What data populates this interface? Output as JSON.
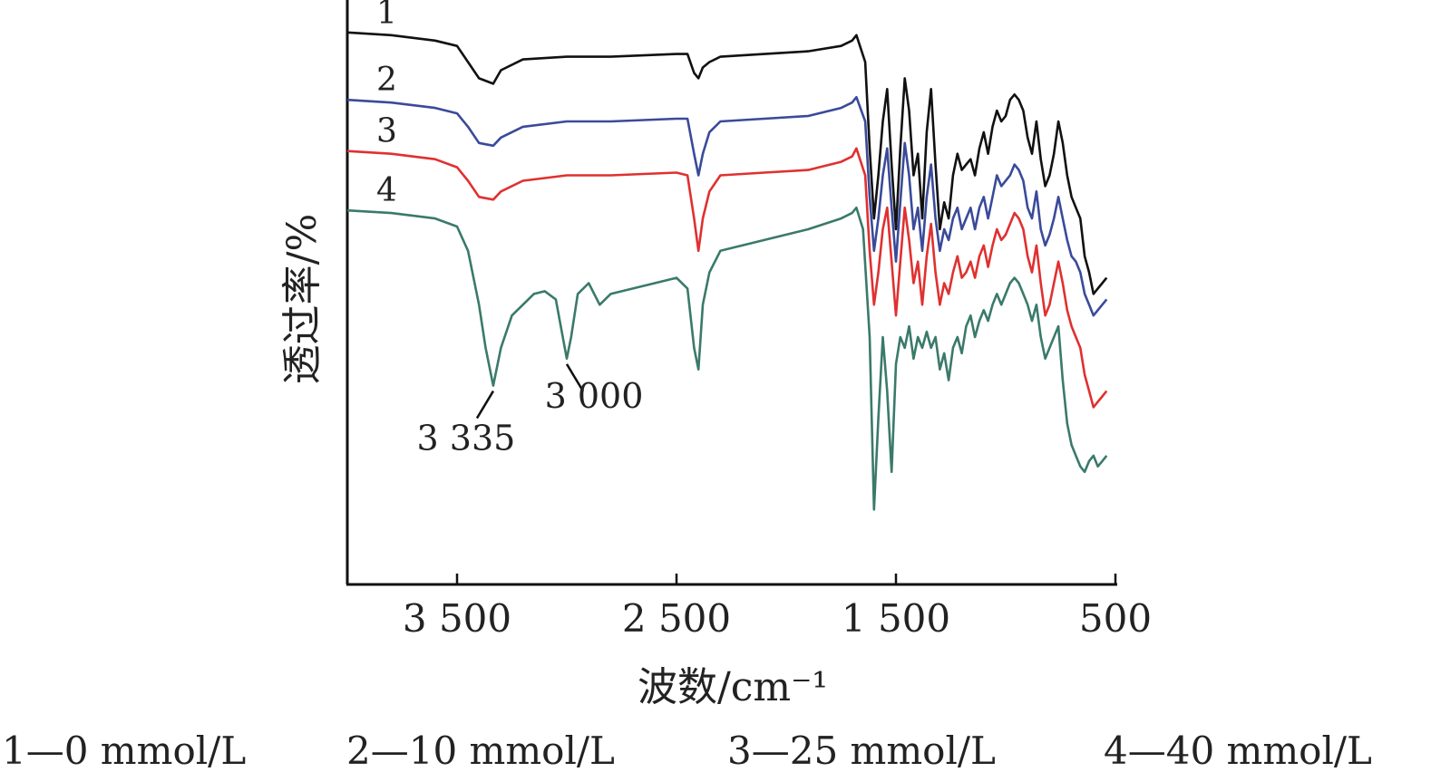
{
  "chart_data": {
    "type": "line",
    "xlabel": "波数/cm⁻¹",
    "ylabel": "透过率/%",
    "xlim": [
      4000,
      500
    ],
    "x_reversed": true,
    "xticks": [
      3500,
      2500,
      1500,
      500
    ],
    "xtick_labels": [
      "3 500",
      "2 500",
      "1 500",
      "500"
    ],
    "grid": false,
    "series": [
      {
        "name": "1",
        "legend": "1—0 mmol/L",
        "color": "#111111",
        "x": [
          4000,
          3800,
          3600,
          3500,
          3450,
          3400,
          3335,
          3300,
          3200,
          3000,
          2800,
          2500,
          2450,
          2420,
          2400,
          2380,
          2350,
          2300,
          2100,
          1900,
          1750,
          1700,
          1680,
          1640,
          1620,
          1600,
          1580,
          1560,
          1540,
          1520,
          1500,
          1480,
          1460,
          1440,
          1420,
          1400,
          1380,
          1360,
          1340,
          1320,
          1300,
          1280,
          1260,
          1240,
          1220,
          1200,
          1180,
          1160,
          1140,
          1120,
          1100,
          1080,
          1060,
          1040,
          1020,
          1000,
          980,
          960,
          940,
          920,
          900,
          880,
          860,
          840,
          820,
          800,
          780,
          760,
          740,
          720,
          700,
          680,
          660,
          640,
          620,
          600,
          580,
          560,
          540
        ],
        "y": [
          96.5,
          96.0,
          95.0,
          94.0,
          91.0,
          88.0,
          87.0,
          89.5,
          91.5,
          92.0,
          92.0,
          92.5,
          92.5,
          89.0,
          88.0,
          90.0,
          91.0,
          92.0,
          92.5,
          93.0,
          94.0,
          95.0,
          96.0,
          91.0,
          75.0,
          62.0,
          70.0,
          80.0,
          86.0,
          72.0,
          60.0,
          75.0,
          88.0,
          82.0,
          70.0,
          74.0,
          62.0,
          78.0,
          86.0,
          72.0,
          60.0,
          65.0,
          62.0,
          70.0,
          74.0,
          71.0,
          72.0,
          73.0,
          70.0,
          75.0,
          78.0,
          74.0,
          79.0,
          82.0,
          80.0,
          81.0,
          84.0,
          85.0,
          84.0,
          82.0,
          77.0,
          74.0,
          80.0,
          73.0,
          68.0,
          70.0,
          74.0,
          80.0,
          76.0,
          70.0,
          66.0,
          64.0,
          62.0,
          55.0,
          52.0,
          48.0,
          49.0,
          50.0,
          51.0
        ]
      },
      {
        "name": "2",
        "legend": "2—10 mmol/L",
        "color": "#3a4a9a",
        "x": [
          4000,
          3800,
          3600,
          3500,
          3450,
          3400,
          3335,
          3300,
          3200,
          3000,
          2800,
          2500,
          2450,
          2420,
          2400,
          2380,
          2350,
          2300,
          2100,
          1900,
          1750,
          1700,
          1680,
          1640,
          1620,
          1600,
          1580,
          1560,
          1540,
          1520,
          1500,
          1480,
          1460,
          1440,
          1420,
          1400,
          1380,
          1360,
          1340,
          1320,
          1300,
          1280,
          1260,
          1240,
          1220,
          1200,
          1180,
          1160,
          1140,
          1120,
          1100,
          1080,
          1060,
          1040,
          1020,
          1000,
          980,
          960,
          940,
          920,
          900,
          880,
          860,
          840,
          820,
          800,
          780,
          760,
          740,
          720,
          700,
          680,
          660,
          640,
          620,
          600,
          580,
          560,
          540
        ],
        "y": [
          84.0,
          83.5,
          82.5,
          81.5,
          79.0,
          76.0,
          75.5,
          77.0,
          79.0,
          80.0,
          80.0,
          80.5,
          80.5,
          74.0,
          70.0,
          74.0,
          78.0,
          80.0,
          80.5,
          81.0,
          82.5,
          83.5,
          84.5,
          80.0,
          66.0,
          56.0,
          62.0,
          70.0,
          75.0,
          64.0,
          54.0,
          65.0,
          76.0,
          70.0,
          60.0,
          64.0,
          56.0,
          66.0,
          72.0,
          62.0,
          56.0,
          60.0,
          58.0,
          62.0,
          64.0,
          60.0,
          62.0,
          64.0,
          60.0,
          64.0,
          66.0,
          62.0,
          66.0,
          70.0,
          68.0,
          69.0,
          70.0,
          72.0,
          71.0,
          69.0,
          64.0,
          62.0,
          67.0,
          60.0,
          57.0,
          59.0,
          62.0,
          66.0,
          62.0,
          58.0,
          55.0,
          54.0,
          52.0,
          48.0,
          46.0,
          44.0,
          45.0,
          46.0,
          47.0
        ]
      },
      {
        "name": "3",
        "legend": "3—25 mmol/L",
        "color": "#e03030",
        "x": [
          4000,
          3800,
          3600,
          3500,
          3450,
          3400,
          3335,
          3300,
          3200,
          3000,
          2800,
          2500,
          2450,
          2420,
          2400,
          2380,
          2350,
          2300,
          2100,
          1900,
          1750,
          1700,
          1680,
          1640,
          1620,
          1600,
          1580,
          1560,
          1540,
          1520,
          1500,
          1480,
          1460,
          1440,
          1420,
          1400,
          1380,
          1360,
          1340,
          1320,
          1300,
          1280,
          1260,
          1240,
          1220,
          1200,
          1180,
          1160,
          1140,
          1120,
          1100,
          1080,
          1060,
          1040,
          1020,
          1000,
          980,
          960,
          940,
          920,
          900,
          880,
          860,
          840,
          820,
          800,
          780,
          760,
          740,
          720,
          700,
          680,
          660,
          640,
          620,
          600,
          580,
          560,
          540
        ],
        "y": [
          74.5,
          74.0,
          73.0,
          71.5,
          69.0,
          66.0,
          65.5,
          67.0,
          69.0,
          70.0,
          70.0,
          70.5,
          70.0,
          62.0,
          56.0,
          62.0,
          67.0,
          70.0,
          70.5,
          71.0,
          72.5,
          73.5,
          75.0,
          70.0,
          56.0,
          46.0,
          52.0,
          60.0,
          64.0,
          54.0,
          44.0,
          54.0,
          64.0,
          58.0,
          50.0,
          54.0,
          46.0,
          55.0,
          61.0,
          52.0,
          46.0,
          50.0,
          48.0,
          52.0,
          55.0,
          51.0,
          52.0,
          54.0,
          51.0,
          55.0,
          57.0,
          53.0,
          57.0,
          60.0,
          58.0,
          59.0,
          61.0,
          63.0,
          62.0,
          60.0,
          55.0,
          52.0,
          57.0,
          50.0,
          44.0,
          46.0,
          50.0,
          54.0,
          50.0,
          45.0,
          42.0,
          40.0,
          38.0,
          33.0,
          30.0,
          27.0,
          28.0,
          29.0,
          30.0
        ]
      },
      {
        "name": "4",
        "legend": "4—40 mmol/L",
        "color": "#3a7a6a",
        "x": [
          4000,
          3800,
          3600,
          3500,
          3450,
          3400,
          3370,
          3335,
          3300,
          3250,
          3200,
          3150,
          3100,
          3050,
          3000,
          2980,
          2950,
          2900,
          2850,
          2800,
          2500,
          2450,
          2420,
          2400,
          2380,
          2350,
          2300,
          2100,
          1900,
          1750,
          1700,
          1680,
          1650,
          1620,
          1600,
          1580,
          1560,
          1540,
          1520,
          1500,
          1480,
          1460,
          1440,
          1420,
          1400,
          1380,
          1360,
          1340,
          1320,
          1300,
          1280,
          1260,
          1240,
          1220,
          1200,
          1180,
          1160,
          1140,
          1120,
          1100,
          1080,
          1060,
          1040,
          1020,
          1000,
          980,
          960,
          940,
          920,
          900,
          880,
          860,
          840,
          820,
          800,
          780,
          760,
          740,
          720,
          700,
          680,
          660,
          640,
          620,
          600,
          580,
          560,
          540
        ],
        "y": [
          63.5,
          63.0,
          62.0,
          60.5,
          56.0,
          46.0,
          38.0,
          31.0,
          38.0,
          44.0,
          46.0,
          48.0,
          48.5,
          47.0,
          36.0,
          40.0,
          48.0,
          50.0,
          46.0,
          48.0,
          51.0,
          49.0,
          38.0,
          34.0,
          46.0,
          52.0,
          56.0,
          58.0,
          60.0,
          62.0,
          63.0,
          64.0,
          60.0,
          40.0,
          8.0,
          25.0,
          40.0,
          30.0,
          15.0,
          35.0,
          40.0,
          38.0,
          42.0,
          36.0,
          40.0,
          38.0,
          41.0,
          38.0,
          40.0,
          34.0,
          37.0,
          32.0,
          38.0,
          40.0,
          37.0,
          42.0,
          44.0,
          40.0,
          43.0,
          45.0,
          43.0,
          46.0,
          48.0,
          46.0,
          48.0,
          50.0,
          51.0,
          50.0,
          48.0,
          46.0,
          43.0,
          46.0,
          40.0,
          36.0,
          38.0,
          40.0,
          42.0,
          32.0,
          24.0,
          20.0,
          18.0,
          16.0,
          15.0,
          17.0,
          18.0,
          16.0,
          17.0,
          18.0
        ]
      }
    ],
    "annotations": [
      {
        "text": "3 335",
        "x": 3335
      },
      {
        "text": "3 000",
        "x": 3000
      }
    ]
  }
}
